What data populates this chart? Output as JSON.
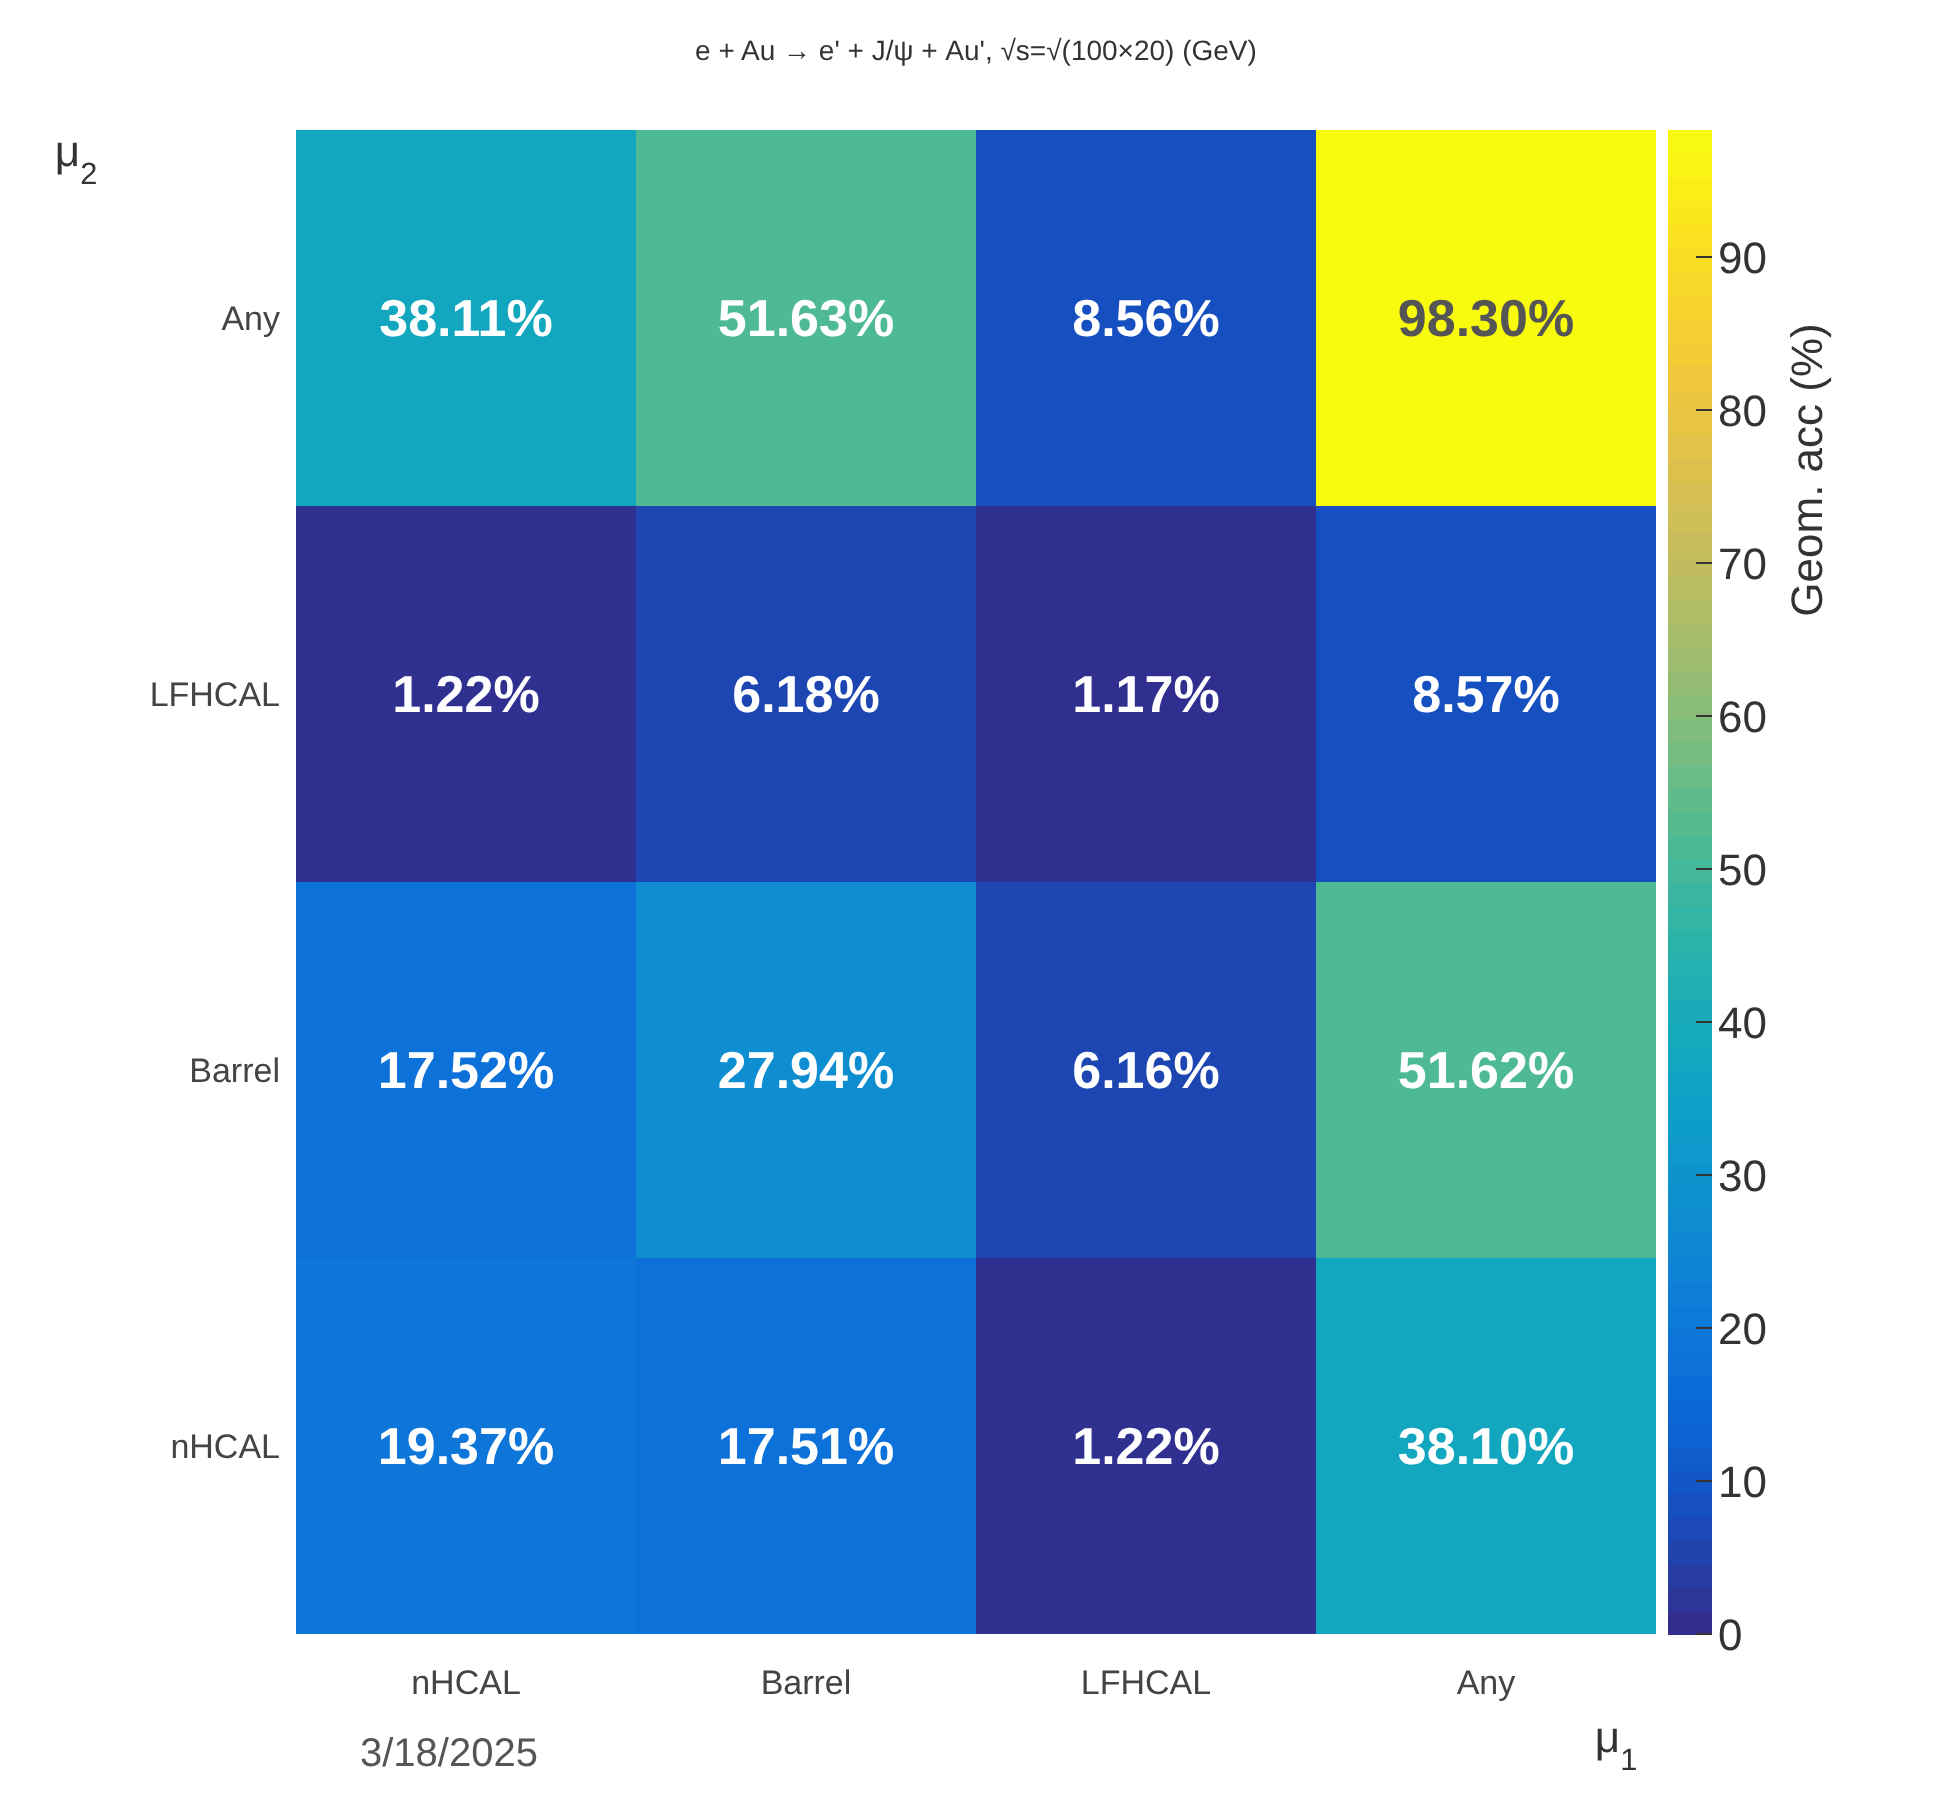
{
  "chart_data": {
    "type": "heatmap",
    "title": "e + Au → e' + J/ψ + Au',  √s=√(100×20) (GeV)",
    "xlabel": "μ$_{1}$",
    "ylabel": "μ$_{2}$",
    "clabel": "Geom. acc (%)",
    "categories": [
      "nHCAL",
      "Barrel",
      "LFHCAL",
      "Any"
    ],
    "y_categories": [
      "Any",
      "LFHCAL",
      "Barrel",
      "nHCAL"
    ],
    "cells": [
      [
        38.11,
        51.63,
        8.56,
        98.3
      ],
      [
        1.22,
        6.18,
        1.17,
        8.57
      ],
      [
        17.52,
        27.94,
        6.16,
        51.62
      ],
      [
        19.37,
        17.51,
        1.22,
        38.1
      ]
    ],
    "cell_labels": [
      [
        "38.11%",
        "51.63%",
        "8.56%",
        "98.30%"
      ],
      [
        "1.22%",
        "6.18%",
        "1.17%",
        "8.57%"
      ],
      [
        "17.52%",
        "27.94%",
        "6.16%",
        "51.62%"
      ],
      [
        "19.37%",
        "17.51%",
        "1.22%",
        "38.10%"
      ]
    ],
    "clim": [
      0,
      98.3
    ],
    "cticks": [
      0,
      10,
      20,
      30,
      40,
      50,
      60,
      70,
      80,
      90
    ],
    "annotations": [
      "3/18/2025"
    ]
  }
}
